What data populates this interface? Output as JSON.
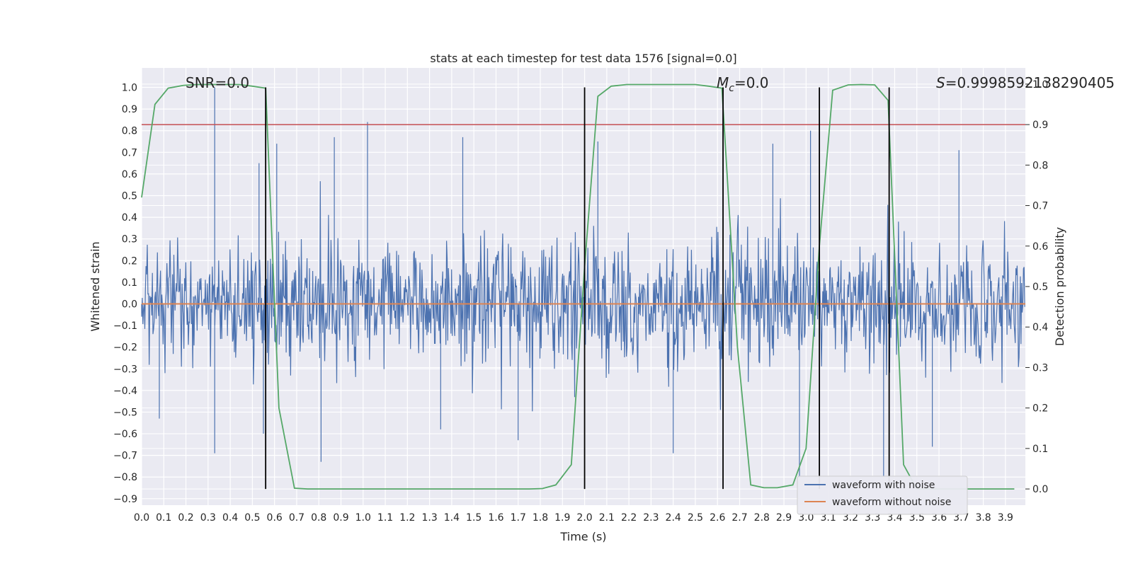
{
  "chart_data": {
    "type": "line",
    "title": "stats at each timestep for test data 1576 [signal=0.0]",
    "xlabel": "Time (s)",
    "ylabel": "Whitened strain",
    "ylabel_right": "Detection probability",
    "xlim": [
      0.0,
      3.99
    ],
    "ylim": [
      -0.93,
      1.09
    ],
    "ylim_right": [
      -0.04,
      1.04
    ],
    "x_ticks": [
      "0.0",
      "0.1",
      "0.2",
      "0.3",
      "0.4",
      "0.5",
      "0.6",
      "0.7",
      "0.8",
      "0.9",
      "1.0",
      "1.1",
      "1.2",
      "1.3",
      "1.4",
      "1.5",
      "1.6",
      "1.7",
      "1.8",
      "1.9",
      "2.0",
      "2.1",
      "2.2",
      "2.3",
      "2.4",
      "2.5",
      "2.6",
      "2.7",
      "2.8",
      "2.9",
      "3.0",
      "3.1",
      "3.2",
      "3.3",
      "3.4",
      "3.5",
      "3.6",
      "3.7",
      "3.8",
      "3.9"
    ],
    "y_ticks": [
      "1.0",
      "0.9",
      "0.8",
      "0.7",
      "0.6",
      "0.5",
      "0.4",
      "0.3",
      "0.2",
      "0.1",
      "0.0",
      "−0.1",
      "−0.2",
      "−0.3",
      "−0.4",
      "−0.5",
      "−0.6",
      "−0.7",
      "−0.8",
      "−0.9"
    ],
    "y_ticks_right": [
      "1.0",
      "0.9",
      "0.8",
      "0.7",
      "0.6",
      "0.5",
      "0.4",
      "0.3",
      "0.2",
      "0.1",
      "0.0"
    ],
    "annotations": {
      "snr": "SNR=0.0",
      "mc_symbol": "M",
      "mc_sub": "c",
      "mc_value": "=0.0",
      "s_symbol": "S",
      "s_value": "=0.9998592138290405"
    },
    "threshold_right": 0.9,
    "vlines_x": [
      0.56,
      2.0,
      2.625,
      3.06,
      3.375
    ],
    "waveform_without_noise": {
      "y": 0.0
    },
    "waveform_with_noise_envelope": {
      "typical_abs": 0.4,
      "max": 1.0,
      "min": -0.73
    },
    "noise_peaks": [
      [
        0.33,
        1.0
      ],
      [
        1.02,
        0.84
      ],
      [
        0.87,
        0.77
      ],
      [
        0.61,
        0.74
      ],
      [
        0.53,
        0.65
      ],
      [
        1.45,
        0.77
      ],
      [
        2.06,
        0.75
      ],
      [
        2.85,
        0.74
      ],
      [
        3.02,
        0.8
      ],
      [
        3.69,
        0.71
      ],
      [
        0.33,
        -0.69
      ],
      [
        0.81,
        -0.73
      ],
      [
        1.7,
        -0.63
      ],
      [
        2.4,
        -0.69
      ],
      [
        2.97,
        -0.8
      ],
      [
        3.35,
        -0.8
      ],
      [
        0.55,
        -0.6
      ],
      [
        1.35,
        -0.58
      ],
      [
        3.57,
        -0.66
      ],
      [
        0.08,
        -0.53
      ]
    ],
    "detection_probability": {
      "x": [
        0.0,
        0.06,
        0.12,
        0.19,
        0.25,
        0.31,
        0.37,
        0.44,
        0.5,
        0.56,
        0.62,
        0.69,
        0.75,
        0.81,
        1.0,
        1.5,
        1.75,
        1.81,
        1.87,
        1.94,
        2.0,
        2.06,
        2.12,
        2.19,
        2.25,
        2.5,
        2.56,
        2.62,
        2.69,
        2.75,
        2.81,
        2.87,
        2.94,
        3.0,
        3.06,
        3.12,
        3.19,
        3.25,
        3.31,
        3.37,
        3.44,
        3.5,
        3.56,
        3.62,
        3.69,
        3.94
      ],
      "y": [
        0.72,
        0.95,
        0.99,
        0.997,
        0.999,
        0.999,
        0.999,
        0.999,
        0.995,
        0.99,
        0.2,
        0.002,
        0.0,
        0.0,
        0.0,
        0.0,
        0.0,
        0.001,
        0.01,
        0.06,
        0.55,
        0.97,
        0.995,
        0.999,
        0.999,
        0.999,
        0.995,
        0.99,
        0.35,
        0.01,
        0.003,
        0.003,
        0.01,
        0.1,
        0.6,
        0.985,
        0.998,
        0.999,
        0.998,
        0.96,
        0.06,
        0.0,
        0.0,
        0.0,
        0.0,
        0.0
      ]
    },
    "legend": {
      "position": "lower-right",
      "entries": [
        {
          "label": "waveform with noise",
          "color": "#4c72b0"
        },
        {
          "label": "waveform without noise",
          "color": "#dd8452"
        }
      ]
    },
    "colors": {
      "plot_bg": "#eaeaf2",
      "grid": "#ffffff",
      "noise": "#4c72b0",
      "clean": "#dd8452",
      "probability": "#55a868",
      "threshold": "#c44e52",
      "vline": "#000000"
    }
  }
}
